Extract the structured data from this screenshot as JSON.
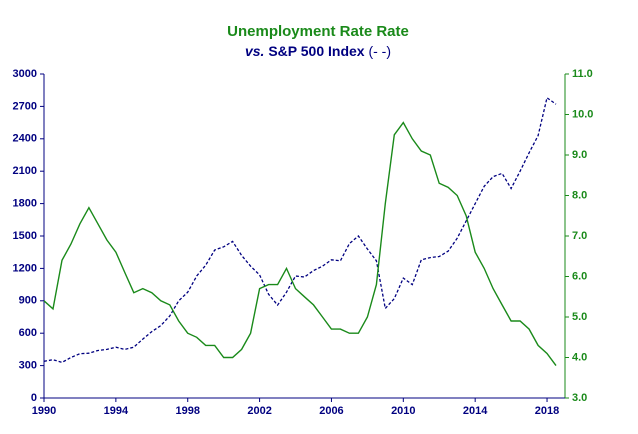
{
  "chart_data": {
    "type": "line",
    "title": "Unemployment Rate Rate",
    "subtitle": [
      "vs.",
      "S&P 500 Index",
      "(- -)"
    ],
    "x": [
      1990,
      1990.5,
      1991,
      1991.5,
      1992,
      1992.5,
      1993,
      1993.5,
      1994,
      1994.5,
      1995,
      1995.5,
      1996,
      1996.5,
      1997,
      1997.5,
      1998,
      1998.5,
      1999,
      1999.5,
      2000,
      2000.5,
      2001,
      2001.5,
      2002,
      2002.5,
      2003,
      2003.5,
      2004,
      2004.5,
      2005,
      2005.5,
      2006,
      2006.5,
      2007,
      2007.5,
      2008,
      2008.5,
      2009,
      2009.5,
      2010,
      2010.5,
      2011,
      2011.5,
      2012,
      2012.5,
      2013,
      2013.5,
      2014,
      2014.5,
      2015,
      2015.5,
      2016,
      2016.5,
      2017,
      2017.5,
      2018,
      2018.5
    ],
    "series": [
      {
        "color": "#000080",
        "dashed": true,
        "values": [
          340,
          355,
          330,
          375,
          410,
          415,
          440,
          450,
          470,
          450,
          470,
          545,
          615,
          670,
          760,
          900,
          980,
          1130,
          1230,
          1370,
          1400,
          1450,
          1320,
          1220,
          1140,
          960,
          860,
          980,
          1130,
          1120,
          1180,
          1220,
          1280,
          1270,
          1430,
          1500,
          1380,
          1270,
          830,
          920,
          1110,
          1050,
          1280,
          1300,
          1310,
          1360,
          1480,
          1640,
          1800,
          1960,
          2050,
          2080,
          1940,
          2100,
          2270,
          2430,
          2780,
          2720
        ]
      },
      {
        "color": "#1a8a1a",
        "axis": "y2",
        "values": [
          5.4,
          5.2,
          6.4,
          6.8,
          7.3,
          7.7,
          7.3,
          6.9,
          6.6,
          6.1,
          5.6,
          5.7,
          5.6,
          5.4,
          5.3,
          4.9,
          4.6,
          4.5,
          4.3,
          4.3,
          4.0,
          4.0,
          4.2,
          4.6,
          5.7,
          5.8,
          5.8,
          6.2,
          5.7,
          5.5,
          5.3,
          5.0,
          4.7,
          4.7,
          4.6,
          4.6,
          5.0,
          5.8,
          7.8,
          9.5,
          9.8,
          9.4,
          9.1,
          9.0,
          8.3,
          8.2,
          8.0,
          7.5,
          6.6,
          6.2,
          5.7,
          5.3,
          4.9,
          4.9,
          4.7,
          4.3,
          4.1,
          3.8
        ]
      }
    ],
    "xlim": [
      1990,
      2019
    ],
    "xticks": [
      1990,
      1994,
      1998,
      2002,
      2006,
      2010,
      2014,
      2018
    ],
    "ylim": [
      0,
      3000
    ],
    "yticks": [
      0,
      300,
      600,
      900,
      1200,
      1500,
      1800,
      2100,
      2400,
      2700,
      3000
    ],
    "y2lim": [
      3,
      11
    ],
    "y2ticks": [
      {
        "value": 3,
        "label": "3.0"
      },
      {
        "value": 4,
        "label": "4.0"
      },
      {
        "value": 5,
        "label": "5.0"
      },
      {
        "value": 6,
        "label": "6.0"
      },
      {
        "value": 7,
        "label": "7.0"
      },
      {
        "value": 8,
        "label": "8.0"
      },
      {
        "value": 9,
        "label": "9.0"
      },
      {
        "value": 10,
        "label": "10.0"
      },
      {
        "value": 11,
        "label": "11.0"
      }
    ],
    "grid": false
  }
}
